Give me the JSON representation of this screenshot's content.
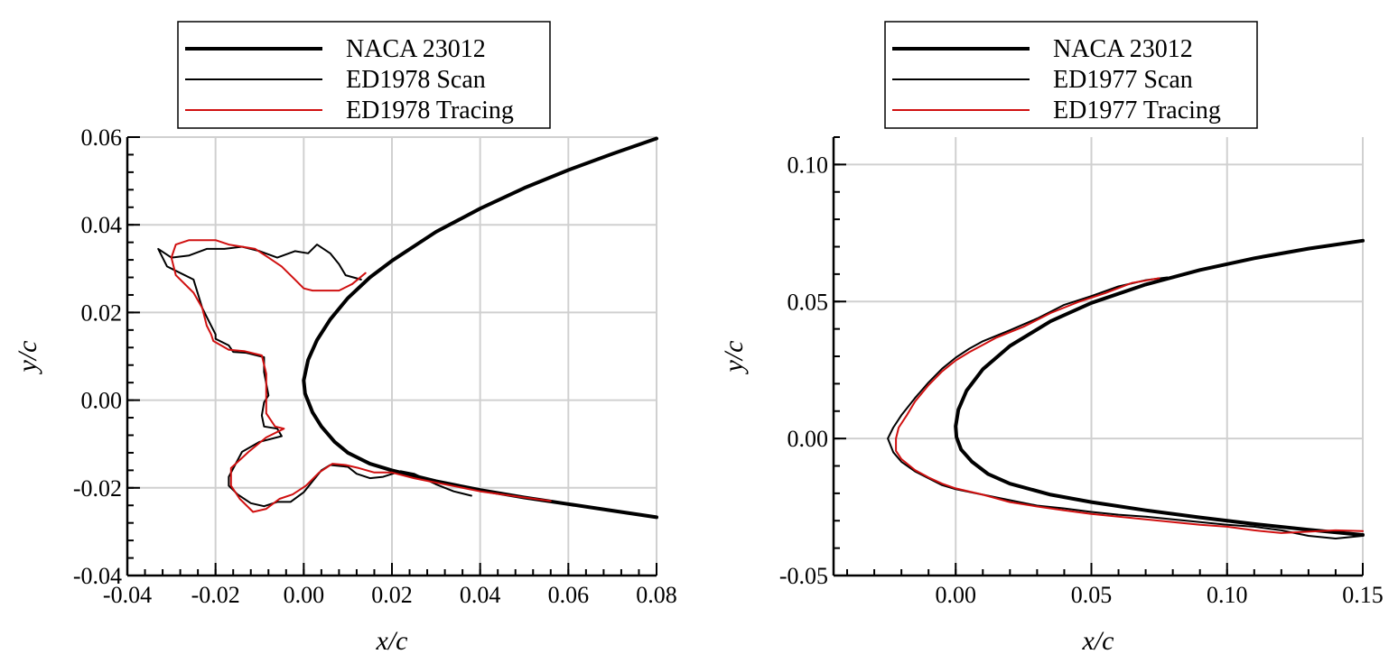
{
  "chart_data": [
    {
      "type": "line",
      "xlabel": "x/c",
      "ylabel": "y/c",
      "xlim": [
        -0.04,
        0.08
      ],
      "ylim": [
        -0.04,
        0.06
      ],
      "x_ticks": [
        -0.04,
        -0.02,
        0.0,
        0.02,
        0.04,
        0.06,
        0.08
      ],
      "y_ticks": [
        -0.04,
        -0.02,
        0.0,
        0.02,
        0.04,
        0.06
      ],
      "x_tick_labels": [
        "-0.04",
        "-0.02",
        "0.00",
        "0.02",
        "0.04",
        "0.06",
        "0.08"
      ],
      "y_tick_labels": [
        "-0.04",
        "-0.02",
        "0.00",
        "0.02",
        "0.04",
        "0.06"
      ],
      "grid": true,
      "legend_position": "top-center",
      "series": [
        {
          "name": "NACA 23012",
          "color": "#000000",
          "style": "thick",
          "x": [
            0.08,
            0.07,
            0.06,
            0.05,
            0.04,
            0.03,
            0.02,
            0.015,
            0.01,
            0.006,
            0.003,
            0.001,
            0.0,
            0.0003,
            0.002,
            0.004,
            0.007,
            0.01,
            0.015,
            0.02,
            0.03,
            0.04,
            0.05,
            0.06,
            0.07,
            0.08
          ],
          "y": [
            0.0597,
            0.0562,
            0.0525,
            0.0484,
            0.0437,
            0.0384,
            0.0318,
            0.028,
            0.0233,
            0.0184,
            0.0137,
            0.0092,
            0.0045,
            0.0015,
            -0.0028,
            -0.006,
            -0.0095,
            -0.012,
            -0.0145,
            -0.016,
            -0.0185,
            -0.0205,
            -0.0222,
            -0.0237,
            -0.0252,
            -0.0267
          ]
        },
        {
          "name": "ED1978 Scan",
          "color": "#000000",
          "style": "thin",
          "x": [
            0.013,
            0.0095,
            0.008,
            0.006,
            0.003,
            0.001,
            -0.002,
            -0.006,
            -0.01,
            -0.014,
            -0.018,
            -0.022,
            -0.026,
            -0.03,
            -0.033,
            -0.031,
            -0.029,
            -0.025,
            -0.023,
            -0.022,
            -0.02,
            -0.02,
            -0.017,
            -0.016,
            -0.013,
            -0.009,
            -0.009,
            -0.008,
            -0.009,
            -0.0095,
            -0.009,
            -0.006,
            -0.005,
            -0.01,
            -0.014,
            -0.017,
            -0.017,
            -0.015,
            -0.012,
            -0.009,
            -0.006,
            -0.003,
            0.0,
            0.002,
            0.004,
            0.006,
            0.01,
            0.012,
            0.015,
            0.018,
            0.022,
            0.025,
            0.03,
            0.034,
            0.038
          ],
          "y": [
            0.0275,
            0.0285,
            0.031,
            0.0335,
            0.0355,
            0.0335,
            0.034,
            0.0325,
            0.034,
            0.035,
            0.0345,
            0.0345,
            0.033,
            0.0325,
            0.0345,
            0.0305,
            0.0295,
            0.0275,
            0.021,
            0.019,
            0.015,
            0.014,
            0.0125,
            0.011,
            0.0108,
            0.0098,
            0.0064,
            0.0011,
            -0.0005,
            -0.0035,
            -0.006,
            -0.0065,
            -0.0082,
            -0.0095,
            -0.0118,
            -0.0175,
            -0.0195,
            -0.0215,
            -0.0235,
            -0.0242,
            -0.0232,
            -0.0232,
            -0.021,
            -0.0185,
            -0.016,
            -0.0148,
            -0.0152,
            -0.0168,
            -0.0178,
            -0.0175,
            -0.0162,
            -0.0168,
            -0.0192,
            -0.0208,
            -0.0218
          ]
        },
        {
          "name": "ED1978 Tracing",
          "color": "#d01010",
          "style": "thin",
          "x": [
            0.014,
            0.011,
            0.008,
            0.005,
            0.002,
            0.0,
            -0.002,
            -0.005,
            -0.008,
            -0.011,
            -0.014,
            -0.017,
            -0.02,
            -0.023,
            -0.026,
            -0.029,
            -0.03,
            -0.029,
            -0.025,
            -0.023,
            -0.022,
            -0.021,
            -0.0205,
            -0.017,
            -0.0135,
            -0.0095,
            -0.0085,
            -0.0085,
            -0.0085,
            -0.0065,
            -0.0045,
            -0.0085,
            -0.0125,
            -0.0165,
            -0.0165,
            -0.0145,
            -0.0115,
            -0.0085,
            -0.0055,
            -0.0025,
            0.0005,
            0.0035,
            0.0065,
            0.0095,
            0.0125,
            0.016,
            0.02,
            0.025,
            0.03,
            0.035,
            0.04,
            0.045,
            0.05,
            0.056
          ],
          "y": [
            0.029,
            0.0265,
            0.025,
            0.025,
            0.025,
            0.0255,
            0.0275,
            0.0305,
            0.0325,
            0.0345,
            0.035,
            0.0355,
            0.0365,
            0.0365,
            0.0365,
            0.0355,
            0.0325,
            0.0285,
            0.0245,
            0.021,
            0.017,
            0.015,
            0.0135,
            0.0115,
            0.0112,
            0.0102,
            0.006,
            0.0,
            -0.003,
            -0.006,
            -0.0065,
            -0.0085,
            -0.0118,
            -0.0155,
            -0.0195,
            -0.0225,
            -0.0255,
            -0.0248,
            -0.0225,
            -0.0215,
            -0.0195,
            -0.0165,
            -0.0145,
            -0.0148,
            -0.0155,
            -0.0165,
            -0.0165,
            -0.0178,
            -0.0188,
            -0.0198,
            -0.0208,
            -0.0215,
            -0.0222,
            -0.023
          ]
        }
      ]
    },
    {
      "type": "line",
      "xlabel": "x/c",
      "ylabel": "y/c",
      "xlim": [
        -0.045,
        0.15
      ],
      "ylim": [
        -0.05,
        0.11
      ],
      "x_ticks": [
        0.0,
        0.05,
        0.1,
        0.15
      ],
      "y_ticks": [
        -0.05,
        0.0,
        0.05,
        0.1
      ],
      "x_tick_labels": [
        "0.00",
        "0.05",
        "0.10",
        "0.15"
      ],
      "y_tick_labels": [
        "-0.05",
        "0.00",
        "0.05",
        "0.10"
      ],
      "grid": true,
      "legend_position": "top-center",
      "series": [
        {
          "name": "NACA 23012",
          "color": "#000000",
          "style": "thick",
          "x": [
            0.15,
            0.13,
            0.11,
            0.09,
            0.07,
            0.05,
            0.035,
            0.02,
            0.01,
            0.004,
            0.001,
            0.0,
            0.0003,
            0.002,
            0.006,
            0.012,
            0.02,
            0.035,
            0.05,
            0.07,
            0.09,
            0.11,
            0.13,
            0.15
          ],
          "y": [
            0.0722,
            0.0693,
            0.0658,
            0.0615,
            0.0562,
            0.0495,
            0.0428,
            0.0338,
            0.0253,
            0.0175,
            0.0105,
            0.0045,
            0.0005,
            -0.004,
            -0.0085,
            -0.013,
            -0.0165,
            -0.0205,
            -0.0232,
            -0.0262,
            -0.0288,
            -0.0312,
            -0.0333,
            -0.0352
          ]
        },
        {
          "name": "ED1977 Scan",
          "color": "#000000",
          "style": "thin",
          "x": [
            0.078,
            0.07,
            0.06,
            0.05,
            0.04,
            0.03,
            0.02,
            0.01,
            0.005,
            0.0,
            -0.005,
            -0.01,
            -0.015,
            -0.02,
            -0.023,
            -0.025,
            -0.023,
            -0.02,
            -0.015,
            -0.01,
            -0.005,
            0.0,
            0.01,
            0.02,
            0.03,
            0.04,
            0.05,
            0.06,
            0.07,
            0.08,
            0.09,
            0.1,
            0.11,
            0.12,
            0.13,
            0.14,
            0.15
          ],
          "y": [
            0.0588,
            0.0578,
            0.0555,
            0.052,
            0.0488,
            0.0438,
            0.0395,
            0.0355,
            0.0328,
            0.0295,
            0.0255,
            0.0205,
            0.0148,
            0.0085,
            0.004,
            0.0,
            -0.005,
            -0.0085,
            -0.012,
            -0.0145,
            -0.017,
            -0.0185,
            -0.0205,
            -0.0225,
            -0.0245,
            -0.0255,
            -0.0268,
            -0.0278,
            -0.0285,
            -0.0295,
            -0.0305,
            -0.0315,
            -0.0322,
            -0.0335,
            -0.0355,
            -0.0365,
            -0.0355
          ]
        },
        {
          "name": "ED1977 Tracing",
          "color": "#d01010",
          "style": "thin",
          "x": [
            0.075,
            0.065,
            0.055,
            0.045,
            0.035,
            0.025,
            0.015,
            0.005,
            0.0,
            -0.005,
            -0.01,
            -0.015,
            -0.018,
            -0.021,
            -0.022,
            -0.022,
            -0.02,
            -0.015,
            -0.01,
            -0.005,
            0.0,
            0.01,
            0.02,
            0.03,
            0.04,
            0.05,
            0.06,
            0.07,
            0.08,
            0.09,
            0.1,
            0.11,
            0.12,
            0.13,
            0.14,
            0.15
          ],
          "y": [
            0.0585,
            0.0568,
            0.053,
            0.0498,
            0.0458,
            0.0408,
            0.0368,
            0.0315,
            0.0285,
            0.0245,
            0.0195,
            0.0135,
            0.0085,
            0.004,
            0.0,
            -0.0045,
            -0.0075,
            -0.0115,
            -0.0142,
            -0.0165,
            -0.0182,
            -0.0205,
            -0.0232,
            -0.0248,
            -0.0262,
            -0.0275,
            -0.0285,
            -0.0295,
            -0.0305,
            -0.0315,
            -0.0322,
            -0.0335,
            -0.0345,
            -0.034,
            -0.0335,
            -0.0338
          ]
        }
      ]
    }
  ]
}
